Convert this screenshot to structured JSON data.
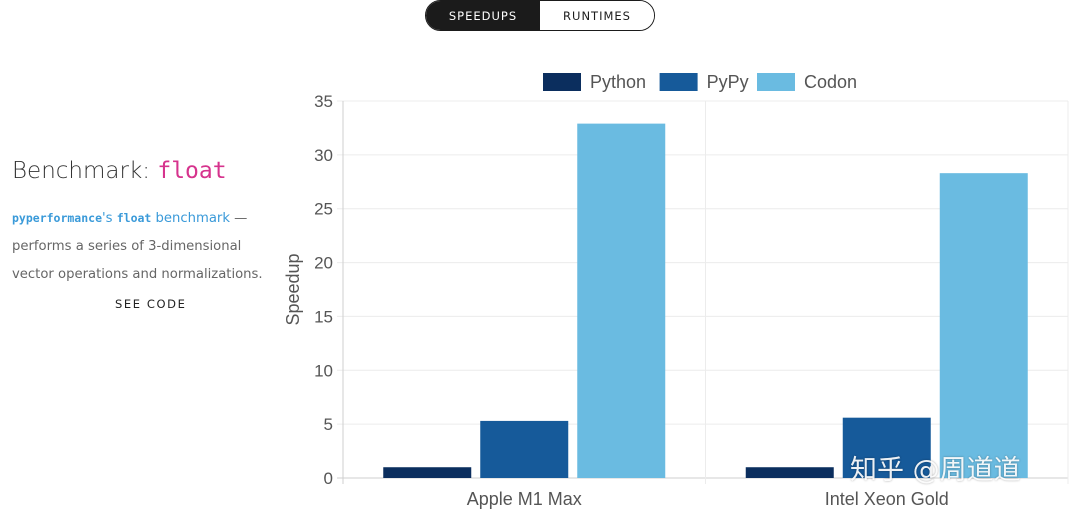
{
  "toggle": {
    "speedups": "SPEEDUPS",
    "runtimes": "RUNTIMES"
  },
  "benchmark": {
    "label": "Benchmark:",
    "name": "float",
    "desc_lib": "pyperformance",
    "desc_suffix": "'s",
    "desc_bench": "float",
    "desc_link": "benchmark",
    "desc_dash": " — ",
    "desc_rest": "performs a series of 3-dimensional vector operations and normalizations.",
    "see_code": "SEE CODE"
  },
  "watermark": "知乎 @周道道",
  "colors": {
    "python": "#0b2e5e",
    "pypy": "#165a9a",
    "codon": "#6abbe1"
  },
  "chart_data": {
    "type": "bar",
    "categories": [
      "Apple M1 Max",
      "Intel Xeon Gold"
    ],
    "series": [
      {
        "name": "Python",
        "values": [
          1,
          1
        ]
      },
      {
        "name": "PyPy",
        "values": [
          5.3,
          5.6
        ]
      },
      {
        "name": "Codon",
        "values": [
          32.9,
          28.3
        ]
      }
    ],
    "ylabel": "Speedup",
    "xlabel": "",
    "ylim": [
      0,
      35
    ],
    "yticks": [
      0,
      5,
      10,
      15,
      20,
      25,
      30,
      35
    ],
    "legend": "top",
    "grid": true
  }
}
